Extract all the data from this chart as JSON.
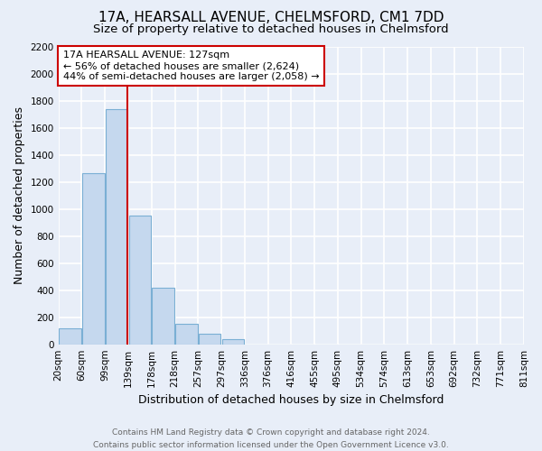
{
  "title": "17A, HEARSALL AVENUE, CHELMSFORD, CM1 7DD",
  "subtitle": "Size of property relative to detached houses in Chelmsford",
  "xlabel": "Distribution of detached houses by size in Chelmsford",
  "ylabel": "Number of detached properties",
  "bar_values": [
    115,
    1265,
    1740,
    950,
    415,
    150,
    75,
    35,
    0,
    0,
    0,
    0,
    0,
    0,
    0,
    0,
    0,
    0,
    0,
    0
  ],
  "bar_labels": [
    "20sqm",
    "60sqm",
    "99sqm",
    "139sqm",
    "178sqm",
    "218sqm",
    "257sqm",
    "297sqm",
    "336sqm",
    "376sqm",
    "416sqm",
    "455sqm",
    "495sqm",
    "534sqm",
    "574sqm",
    "613sqm",
    "653sqm",
    "692sqm",
    "732sqm",
    "771sqm",
    "811sqm"
  ],
  "bar_color": "#c5d8ee",
  "bar_edge_color": "#7aafd4",
  "vline_color": "#cc0000",
  "annotation_text": "17A HEARSALL AVENUE: 127sqm\n← 56% of detached houses are smaller (2,624)\n44% of semi-detached houses are larger (2,058) →",
  "annotation_box_color": "white",
  "annotation_box_edge": "#cc0000",
  "ylim": [
    0,
    2200
  ],
  "yticks": [
    0,
    200,
    400,
    600,
    800,
    1000,
    1200,
    1400,
    1600,
    1800,
    2000,
    2200
  ],
  "footer_line1": "Contains HM Land Registry data © Crown copyright and database right 2024.",
  "footer_line2": "Contains public sector information licensed under the Open Government Licence v3.0.",
  "bg_color": "#e8eef8",
  "plot_bg_color": "#e8eef8",
  "grid_color": "white",
  "title_fontsize": 11,
  "subtitle_fontsize": 9.5,
  "axis_label_fontsize": 9,
  "tick_fontsize": 7.5,
  "footer_fontsize": 6.5,
  "annotation_fontsize": 8
}
